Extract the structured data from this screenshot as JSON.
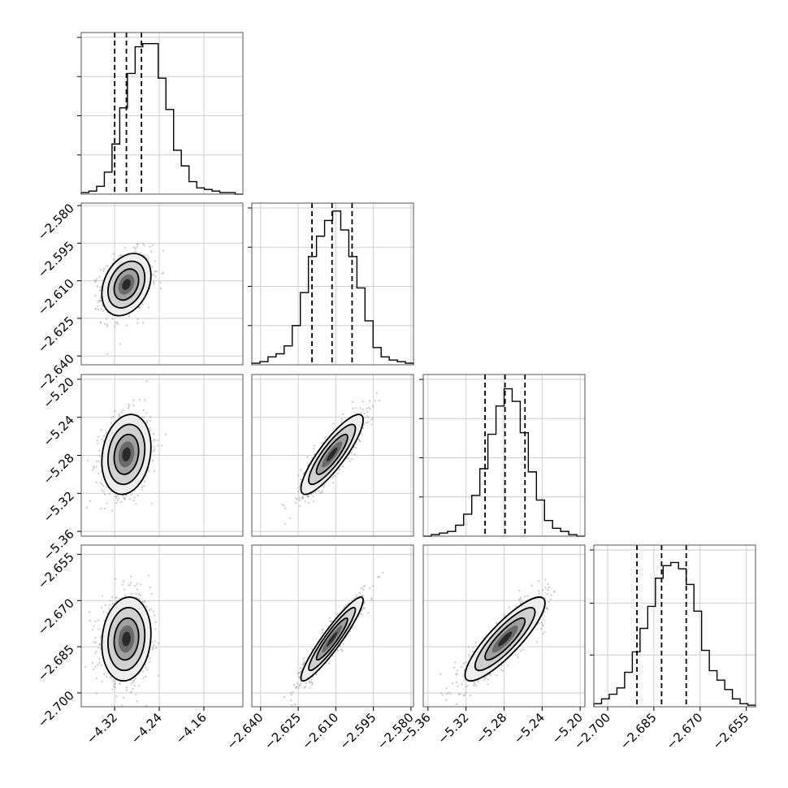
{
  "chart_data": {
    "type": "corner",
    "parameters": [
      {
        "range": [
          -4.38,
          -4.09
        ],
        "ticks": [
          -4.32,
          -4.24,
          -4.16
        ],
        "tick_labels": [
          "−4.32",
          "−4.24",
          "−4.16"
        ],
        "quantiles": [
          -4.32,
          -4.299,
          -4.272
        ],
        "hist_top": 1.0,
        "hist_ticks": [
          0.25,
          0.5,
          0.75,
          1.0
        ],
        "hist": [
          0.01,
          0.02,
          0.05,
          0.14,
          0.32,
          0.55,
          0.77,
          0.94,
          0.96,
          0.96,
          0.74,
          0.54,
          0.28,
          0.18,
          0.08,
          0.04,
          0.03,
          0.02,
          0.01,
          0.01,
          0.0
        ]
      },
      {
        "range": [
          -2.6435,
          -2.579
        ],
        "ticks": [
          -2.64,
          -2.625,
          -2.61,
          -2.595,
          -2.58
        ],
        "tick_labels": [
          "−2.640",
          "−2.625",
          "−2.610",
          "−2.595",
          "−2.580"
        ],
        "quantiles": [
          -2.6195,
          -2.6115,
          -2.6035
        ],
        "hist_top": 1.0,
        "hist_ticks": [
          0.25,
          0.5,
          0.75,
          1.0
        ],
        "hist": [
          0.01,
          0.02,
          0.05,
          0.07,
          0.12,
          0.25,
          0.46,
          0.69,
          0.82,
          0.92,
          0.98,
          0.86,
          0.69,
          0.49,
          0.28,
          0.11,
          0.05,
          0.03,
          0.02,
          0.01
        ]
      },
      {
        "range": [
          -5.365,
          -5.195
        ],
        "ticks": [
          -5.36,
          -5.32,
          -5.28,
          -5.24,
          -5.2
        ],
        "tick_labels": [
          "−5.36",
          "−5.32",
          "−5.28",
          "−5.24",
          "−5.20"
        ],
        "quantiles": [
          -5.3,
          -5.279,
          -5.258
        ],
        "hist_top": 1.0,
        "hist_ticks": [
          0.25,
          0.5,
          0.75,
          1.0
        ],
        "hist": [
          0.0,
          0.01,
          0.02,
          0.03,
          0.07,
          0.14,
          0.26,
          0.43,
          0.65,
          0.83,
          0.94,
          0.86,
          0.66,
          0.41,
          0.23,
          0.1,
          0.05,
          0.03,
          0.01,
          0.0
        ]
      },
      {
        "range": [
          -2.7045,
          -2.652
        ],
        "ticks": [
          -2.7,
          -2.685,
          -2.67,
          -2.655
        ],
        "tick_labels": [
          "−2.700",
          "−2.685",
          "−2.670",
          "−2.655"
        ],
        "quantiles": [
          -2.6905,
          -2.6825,
          -2.6745
        ],
        "hist_top": 1.0,
        "hist_ticks": [
          0.33,
          0.66,
          1.0
        ],
        "hist": [
          0.02,
          0.05,
          0.08,
          0.12,
          0.22,
          0.35,
          0.5,
          0.64,
          0.82,
          0.9,
          0.92,
          0.88,
          0.78,
          0.61,
          0.36,
          0.23,
          0.17,
          0.11,
          0.05,
          0.02,
          0.01
        ]
      }
    ],
    "correlations": [
      {
        "row": 1,
        "col": 0,
        "center": [
          -4.299,
          -2.6115
        ],
        "sigma": [
          0.022,
          0.0062
        ],
        "rho": 0.3
      },
      {
        "row": 2,
        "col": 0,
        "center": [
          -4.299,
          -5.279
        ],
        "sigma": [
          0.022,
          0.021
        ],
        "rho": 0.18
      },
      {
        "row": 2,
        "col": 1,
        "center": [
          -2.6115,
          -5.279
        ],
        "sigma": [
          0.0062,
          0.021
        ],
        "rho": 0.86
      },
      {
        "row": 3,
        "col": 0,
        "center": [
          -4.299,
          -2.6825
        ],
        "sigma": [
          0.022,
          0.0068
        ],
        "rho": 0.12
      },
      {
        "row": 3,
        "col": 1,
        "center": [
          -2.6115,
          -2.6825
        ],
        "sigma": [
          0.0062,
          0.0068
        ],
        "rho": 0.93
      },
      {
        "row": 3,
        "col": 2,
        "center": [
          -5.279,
          -2.6825
        ],
        "sigma": [
          0.021,
          0.0068
        ],
        "rho": 0.86
      }
    ],
    "grid": true,
    "contour_levels_sigma": [
      1.0,
      1.5,
      2.0
    ]
  }
}
